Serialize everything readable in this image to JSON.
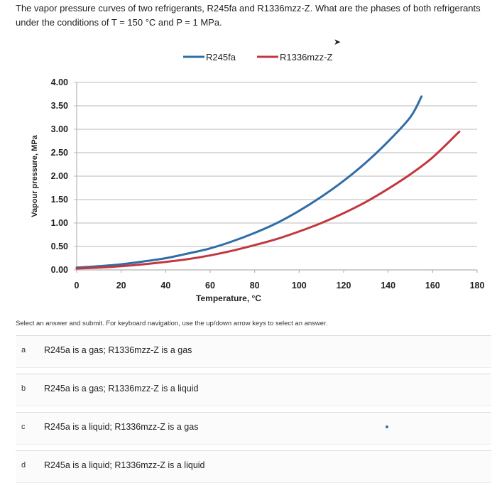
{
  "question": {
    "text": "The vapor pressure curves of two refrigerants, R245fa and R1336mzz-Z. What are the phases of both refrigerants under the conditions of T = 150 °C and P = 1 MPa."
  },
  "chart_data": {
    "type": "line",
    "title": "",
    "xlabel": "Temperature, °C",
    "ylabel": "Vapour pressure, MPa",
    "xlim": [
      0,
      180
    ],
    "ylim": [
      0,
      4
    ],
    "x_ticks": [
      "0",
      "20",
      "40",
      "60",
      "80",
      "100",
      "120",
      "140",
      "160",
      "180"
    ],
    "y_ticks": [
      "0.00",
      "0.50",
      "1.00",
      "1.50",
      "2.00",
      "2.50",
      "3.00",
      "3.50",
      "4.00"
    ],
    "grid": "horizontal",
    "legend_position": "top-center",
    "series": [
      {
        "name": "R245fa",
        "color": "#2f6da6",
        "x": [
          0,
          10,
          20,
          30,
          40,
          50,
          60,
          70,
          80,
          90,
          100,
          110,
          120,
          130,
          140,
          150,
          155
        ],
        "y": [
          0.05,
          0.08,
          0.12,
          0.18,
          0.25,
          0.35,
          0.46,
          0.61,
          0.79,
          1.0,
          1.26,
          1.56,
          1.9,
          2.29,
          2.74,
          3.26,
          3.7
        ]
      },
      {
        "name": "R1336mzz-Z",
        "color": "#c2373f",
        "x": [
          0,
          10,
          20,
          30,
          40,
          50,
          60,
          70,
          80,
          90,
          100,
          110,
          120,
          130,
          140,
          150,
          160,
          172
        ],
        "y": [
          0.03,
          0.05,
          0.08,
          0.12,
          0.17,
          0.23,
          0.31,
          0.41,
          0.53,
          0.66,
          0.82,
          1.0,
          1.21,
          1.45,
          1.73,
          2.04,
          2.4,
          2.95
        ]
      }
    ]
  },
  "instruction": "Select an answer and submit. For keyboard navigation, use the up/down arrow keys to select an answer.",
  "options": [
    {
      "letter": "a",
      "text": "R245a is a gas; R1336mzz-Z is a gas"
    },
    {
      "letter": "b",
      "text": "R245a is a gas; R1336mzz-Z is a liquid"
    },
    {
      "letter": "c",
      "text": "R245a is a liquid; R1336mzz-Z is a gas"
    },
    {
      "letter": "d",
      "text": "R245a is a liquid; R1336mzz-Z is a liquid"
    }
  ],
  "icons": {
    "pointer": "mouse-cursor-icon"
  }
}
